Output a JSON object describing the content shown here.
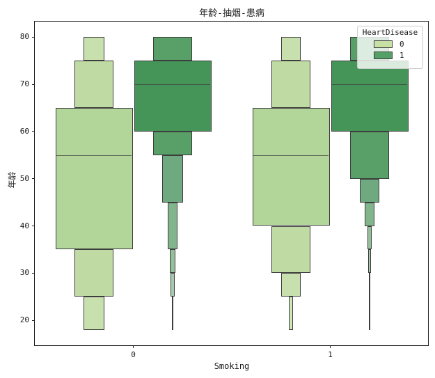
{
  "title": "年龄-抽烟-患病",
  "axis": {
    "xlabel": "Smoking",
    "ylabel": "年龄"
  },
  "legend": {
    "title": "HeartDisease",
    "items": [
      {
        "label": "0",
        "color": "#c7e0a4"
      },
      {
        "label": "1",
        "color": "#55a066"
      }
    ]
  },
  "chart_data": {
    "type": "boxen",
    "title": "年龄-抽烟-患病",
    "xlabel": "Smoking",
    "ylabel": "年龄",
    "categories": [
      "0",
      "1"
    ],
    "y_ticks": [
      20,
      30,
      40,
      50,
      60,
      70,
      80
    ],
    "ylim": [
      14.7,
      83.3
    ],
    "legend_title": "HeartDisease",
    "hues": [
      "0",
      "1"
    ],
    "hue_colors": {
      "0": "#b2d69a",
      "1": "#459558"
    },
    "grid": false,
    "legend_position": "upper right",
    "groups": [
      {
        "category": "0",
        "hue": "0",
        "median": 55,
        "levels": [
          {
            "lo": 75,
            "hi": 80,
            "wf": 0.27,
            "color": "#c8dfae"
          },
          {
            "lo": 65,
            "hi": 75,
            "wf": 0.5,
            "color": "#bfdaa3"
          },
          {
            "lo": 35,
            "hi": 65,
            "wf": 1.0,
            "color": "#b2d69a"
          },
          {
            "lo": 25,
            "hi": 35,
            "wf": 0.5,
            "color": "#bfdaa3"
          },
          {
            "lo": 18,
            "hi": 25,
            "wf": 0.27,
            "color": "#c8dfae"
          }
        ]
      },
      {
        "category": "0",
        "hue": "1",
        "median": 70,
        "levels": [
          {
            "lo": 75,
            "hi": 80,
            "wf": 0.5,
            "color": "#58a067"
          },
          {
            "lo": 60,
            "hi": 75,
            "wf": 1.0,
            "color": "#459558"
          },
          {
            "lo": 55,
            "hi": 60,
            "wf": 0.505,
            "color": "#58a067"
          },
          {
            "lo": 45,
            "hi": 55,
            "wf": 0.27,
            "color": "#6fa97f"
          },
          {
            "lo": 35,
            "hi": 45,
            "wf": 0.135,
            "color": "#83b58d"
          },
          {
            "lo": 30,
            "hi": 35,
            "wf": 0.08,
            "color": "#95bf9b"
          },
          {
            "lo": 25,
            "hi": 30,
            "wf": 0.05,
            "color": "#a6caab"
          },
          {
            "lo": 18,
            "hi": 25,
            "wf": 0.02,
            "color": "#b7d4b9"
          }
        ]
      },
      {
        "category": "1",
        "hue": "0",
        "median": 55,
        "levels": [
          {
            "lo": 75,
            "hi": 80,
            "wf": 0.26,
            "color": "#c8dfae"
          },
          {
            "lo": 65,
            "hi": 75,
            "wf": 0.51,
            "color": "#bfdaa3"
          },
          {
            "lo": 40,
            "hi": 65,
            "wf": 1.0,
            "color": "#b2d69a"
          },
          {
            "lo": 30,
            "hi": 40,
            "wf": 0.51,
            "color": "#bfdaa3"
          },
          {
            "lo": 25,
            "hi": 30,
            "wf": 0.25,
            "color": "#c8dfae"
          },
          {
            "lo": 18,
            "hi": 25,
            "wf": 0.06,
            "color": "#d1e4b9"
          }
        ]
      },
      {
        "category": "1",
        "hue": "1",
        "median": 70,
        "levels": [
          {
            "lo": 75,
            "hi": 80,
            "wf": 0.5,
            "color": "#58a067"
          },
          {
            "lo": 60,
            "hi": 75,
            "wf": 1.0,
            "color": "#459558"
          },
          {
            "lo": 50,
            "hi": 60,
            "wf": 0.505,
            "color": "#58a067"
          },
          {
            "lo": 45,
            "hi": 50,
            "wf": 0.245,
            "color": "#6fa97f"
          },
          {
            "lo": 40,
            "hi": 45,
            "wf": 0.12,
            "color": "#83b58d"
          },
          {
            "lo": 35,
            "hi": 40,
            "wf": 0.06,
            "color": "#95bf9b"
          },
          {
            "lo": 30,
            "hi": 35,
            "wf": 0.03,
            "color": "#a6caab"
          },
          {
            "lo": 18,
            "hi": 30,
            "wf": 0.015,
            "color": "#b7d4b9"
          }
        ]
      }
    ]
  }
}
